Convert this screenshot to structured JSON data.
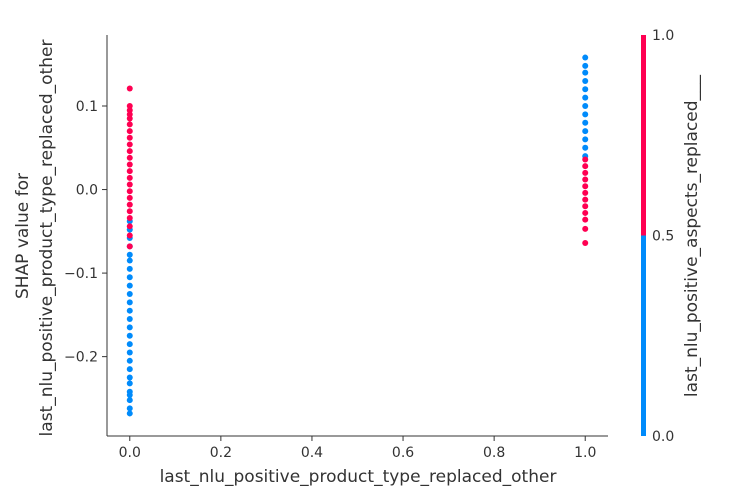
{
  "chart_data": {
    "type": "scatter",
    "xlabel": "last_nlu_positive_product_type_replaced_other",
    "ylabel_line1": "SHAP value for",
    "ylabel_line2": "last_nlu_positive_product_type_replaced_other",
    "xlim": [
      -0.05,
      1.05
    ],
    "ylim": [
      -0.295,
      0.185
    ],
    "x_ticks": [
      0.0,
      0.2,
      0.4,
      0.6,
      0.8,
      1.0
    ],
    "x_tick_labels": [
      "0.0",
      "0.2",
      "0.4",
      "0.6",
      "0.8",
      "1.0"
    ],
    "y_ticks": [
      0.1,
      0.0,
      -0.1,
      -0.2
    ],
    "y_tick_labels": [
      "0.1",
      "0.0",
      "−0.1",
      "−0.2"
    ],
    "colorbar": {
      "label": "last_nlu_positive_aspects_replaced___",
      "ticks": [
        1.0,
        0.5,
        0.0
      ],
      "tick_labels": [
        "1.0",
        "0.5",
        "0.0"
      ],
      "low_color": "#008bfb",
      "high_color": "#ff0052"
    },
    "series": [
      {
        "color_value": 0,
        "color": "#008bfb",
        "points": [
          {
            "x": 0,
            "y": -0.268
          },
          {
            "x": 0,
            "y": -0.262
          },
          {
            "x": 0,
            "y": -0.252
          },
          {
            "x": 0,
            "y": -0.246
          },
          {
            "x": 0,
            "y": -0.242
          },
          {
            "x": 0,
            "y": -0.232
          },
          {
            "x": 0,
            "y": -0.225
          },
          {
            "x": 0,
            "y": -0.215
          },
          {
            "x": 0,
            "y": -0.205
          },
          {
            "x": 0,
            "y": -0.195
          },
          {
            "x": 0,
            "y": -0.185
          },
          {
            "x": 0,
            "y": -0.175
          },
          {
            "x": 0,
            "y": -0.165
          },
          {
            "x": 0,
            "y": -0.155
          },
          {
            "x": 0,
            "y": -0.145
          },
          {
            "x": 0,
            "y": -0.135
          },
          {
            "x": 0,
            "y": -0.125
          },
          {
            "x": 0,
            "y": -0.115
          },
          {
            "x": 0,
            "y": -0.105
          },
          {
            "x": 0,
            "y": -0.095
          },
          {
            "x": 0,
            "y": -0.085
          },
          {
            "x": 0,
            "y": -0.078
          },
          {
            "x": 0,
            "y": -0.068
          },
          {
            "x": 0,
            "y": -0.058
          },
          {
            "x": 0,
            "y": -0.048
          },
          {
            "x": 0,
            "y": -0.038
          },
          {
            "x": 1,
            "y": 0.158
          },
          {
            "x": 1,
            "y": 0.148
          },
          {
            "x": 1,
            "y": 0.14
          },
          {
            "x": 1,
            "y": 0.13
          },
          {
            "x": 1,
            "y": 0.12
          },
          {
            "x": 1,
            "y": 0.11
          },
          {
            "x": 1,
            "y": 0.1
          },
          {
            "x": 1,
            "y": 0.09
          },
          {
            "x": 1,
            "y": 0.08
          },
          {
            "x": 1,
            "y": 0.07
          },
          {
            "x": 1,
            "y": 0.06
          },
          {
            "x": 1,
            "y": 0.05
          },
          {
            "x": 1,
            "y": 0.04
          }
        ]
      },
      {
        "color_value": 1,
        "color": "#ff0052",
        "points": [
          {
            "x": 0,
            "y": 0.121
          },
          {
            "x": 0,
            "y": 0.1
          },
          {
            "x": 0,
            "y": 0.095
          },
          {
            "x": 0,
            "y": 0.09
          },
          {
            "x": 0,
            "y": 0.085
          },
          {
            "x": 0,
            "y": 0.078
          },
          {
            "x": 0,
            "y": 0.07
          },
          {
            "x": 0,
            "y": 0.062
          },
          {
            "x": 0,
            "y": 0.054
          },
          {
            "x": 0,
            "y": 0.046
          },
          {
            "x": 0,
            "y": 0.038
          },
          {
            "x": 0,
            "y": 0.03
          },
          {
            "x": 0,
            "y": 0.022
          },
          {
            "x": 0,
            "y": 0.014
          },
          {
            "x": 0,
            "y": 0.006
          },
          {
            "x": 0,
            "y": -0.002
          },
          {
            "x": 0,
            "y": -0.01
          },
          {
            "x": 0,
            "y": -0.018
          },
          {
            "x": 0,
            "y": -0.026
          },
          {
            "x": 0,
            "y": -0.034
          },
          {
            "x": 0,
            "y": -0.044
          },
          {
            "x": 0,
            "y": -0.055
          },
          {
            "x": 0,
            "y": -0.068
          },
          {
            "x": 1,
            "y": 0.036
          },
          {
            "x": 1,
            "y": 0.028
          },
          {
            "x": 1,
            "y": 0.02
          },
          {
            "x": 1,
            "y": 0.012
          },
          {
            "x": 1,
            "y": 0.004
          },
          {
            "x": 1,
            "y": -0.004
          },
          {
            "x": 1,
            "y": -0.012
          },
          {
            "x": 1,
            "y": -0.02
          },
          {
            "x": 1,
            "y": -0.028
          },
          {
            "x": 1,
            "y": -0.036
          },
          {
            "x": 1,
            "y": -0.047
          },
          {
            "x": 1,
            "y": -0.064
          }
        ]
      }
    ]
  }
}
